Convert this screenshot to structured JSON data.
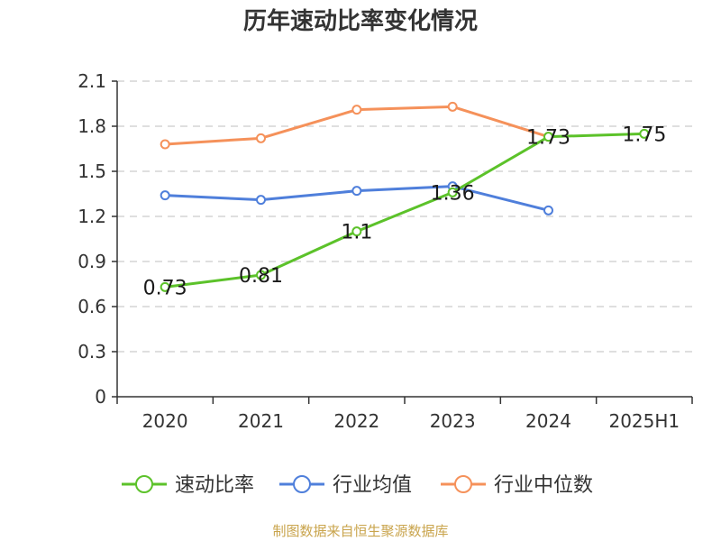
{
  "chart_data": {
    "type": "line",
    "title": "历年速动比率变化情况",
    "categories": [
      "2020",
      "2021",
      "2022",
      "2023",
      "2024",
      "2025H1"
    ],
    "y_ticks": [
      "0",
      "0.3",
      "0.6",
      "0.9",
      "1.2",
      "1.5",
      "1.8",
      "2.1"
    ],
    "ylim": [
      0,
      2.1
    ],
    "grid": true,
    "legend_position": "bottom",
    "series": [
      {
        "name": "速动比率",
        "color": "#5cc22a",
        "values": [
          0.73,
          0.81,
          1.1,
          1.36,
          1.73,
          1.75
        ],
        "labels": [
          "0.73",
          "0.81",
          "1.1",
          "1.36",
          "1.73",
          "1.75"
        ]
      },
      {
        "name": "行业均值",
        "color": "#4f7fdb",
        "values": [
          1.34,
          1.31,
          1.37,
          1.4,
          1.24,
          null
        ]
      },
      {
        "name": "行业中位数",
        "color": "#f5915a",
        "values": [
          1.68,
          1.72,
          1.91,
          1.93,
          1.73,
          null
        ]
      }
    ]
  },
  "footer": {
    "source": "制图数据来自恒生聚源数据库"
  }
}
